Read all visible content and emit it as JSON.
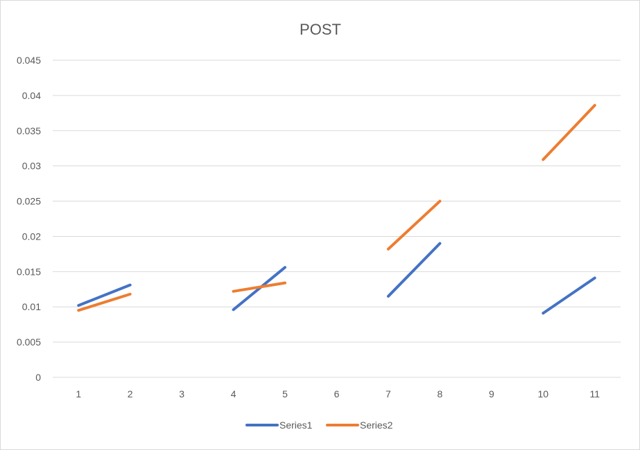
{
  "chart_data": {
    "type": "line",
    "title": "POST",
    "xlabel": "",
    "ylabel": "",
    "categories": [
      "1",
      "2",
      "3",
      "4",
      "5",
      "6",
      "7",
      "8",
      "9",
      "10",
      "11"
    ],
    "ylim": [
      0,
      0.045
    ],
    "y_ticks": [
      "0",
      "0.005",
      "0.01",
      "0.015",
      "0.02",
      "0.025",
      "0.03",
      "0.035",
      "0.04",
      "0.045"
    ],
    "grid": true,
    "legend_position": "bottom",
    "series": [
      {
        "name": "Series1",
        "color": "#4472c4",
        "values": [
          0.0102,
          0.0131,
          null,
          0.0096,
          0.0156,
          null,
          0.0115,
          0.019,
          null,
          0.0091,
          0.0141
        ]
      },
      {
        "name": "Series2",
        "color": "#ed7d31",
        "values": [
          0.0095,
          0.0118,
          null,
          0.0122,
          0.0134,
          null,
          0.0182,
          0.025,
          null,
          0.0309,
          0.0386
        ]
      }
    ]
  }
}
